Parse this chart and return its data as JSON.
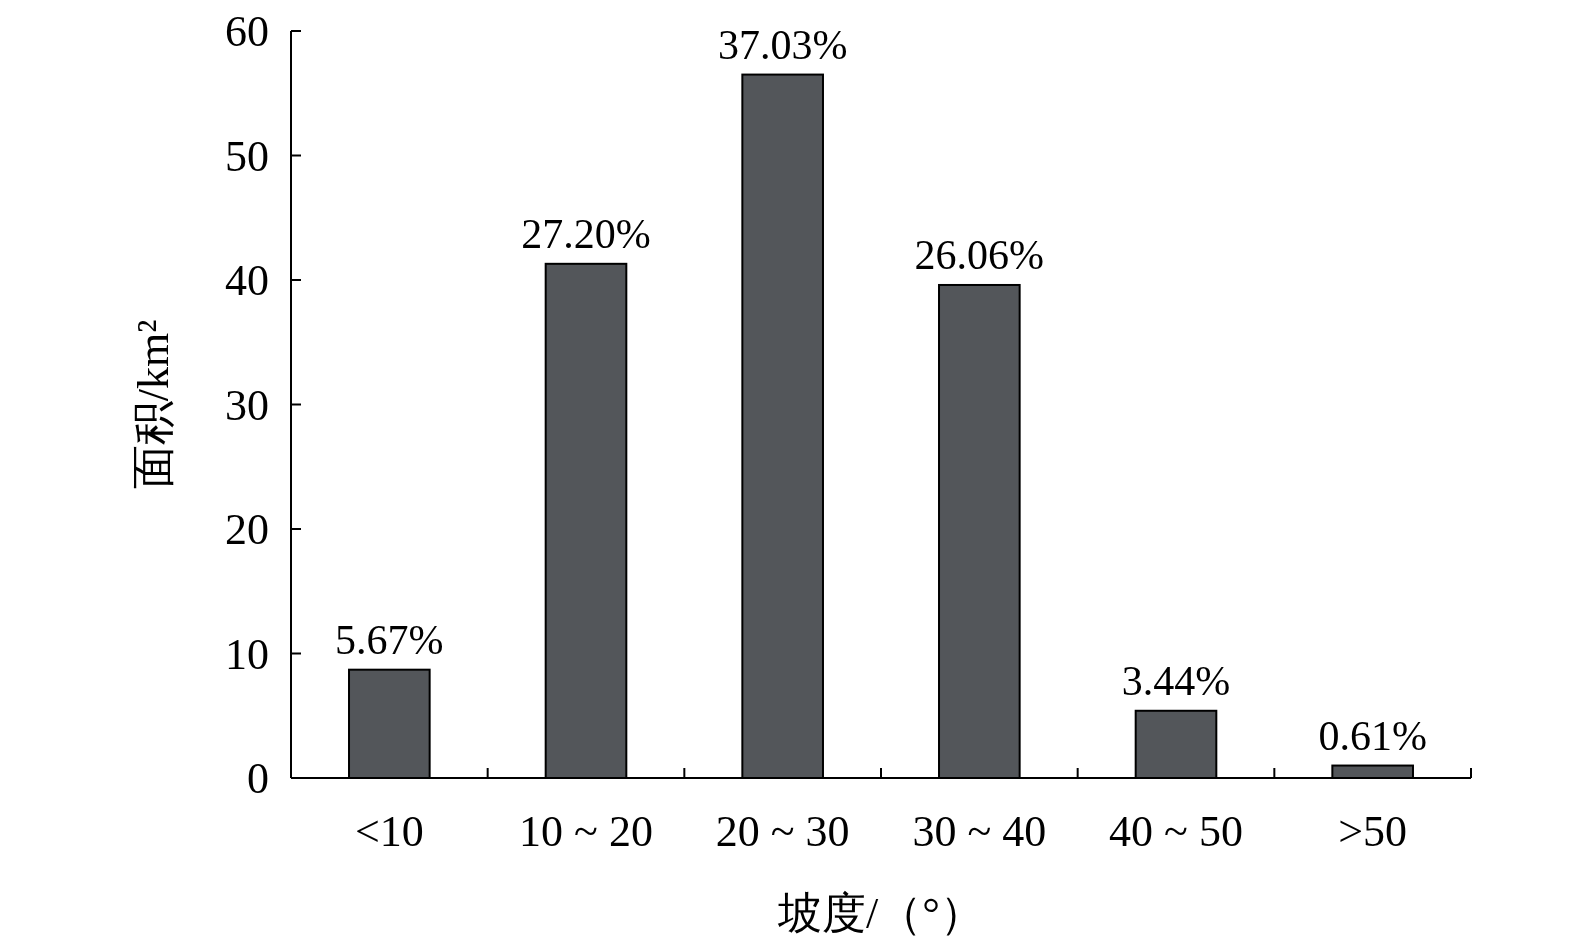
{
  "chart_data": {
    "type": "bar",
    "xlabel": "坡度/（°）",
    "ylabel": "面积/km²",
    "categories": [
      "<10",
      "10 ~ 20",
      "20 ~ 30",
      "30 ~ 40",
      "40 ~ 50",
      ">50"
    ],
    "values": [
      8.7,
      41.3,
      56.5,
      39.6,
      5.4,
      1.0
    ],
    "annotations": [
      {
        "text": "5.67%",
        "x": "<10",
        "y": 8.7
      },
      {
        "text": "27.20%",
        "x": "10 ~ 20",
        "y": 41.3
      },
      {
        "text": "37.03%",
        "x": "20 ~ 30",
        "y": 56.5
      },
      {
        "text": "26.06%",
        "x": "30 ~ 40",
        "y": 39.6
      },
      {
        "text": "3.44%",
        "x": "40 ~ 50",
        "y": 5.4
      },
      {
        "text": "0.61%",
        "x": ">50",
        "y": 1.0
      }
    ],
    "color": "#53565a",
    "ylim": [
      0,
      60
    ],
    "yticks": [
      0,
      10,
      20,
      30,
      40,
      50,
      60
    ],
    "grid": false
  }
}
